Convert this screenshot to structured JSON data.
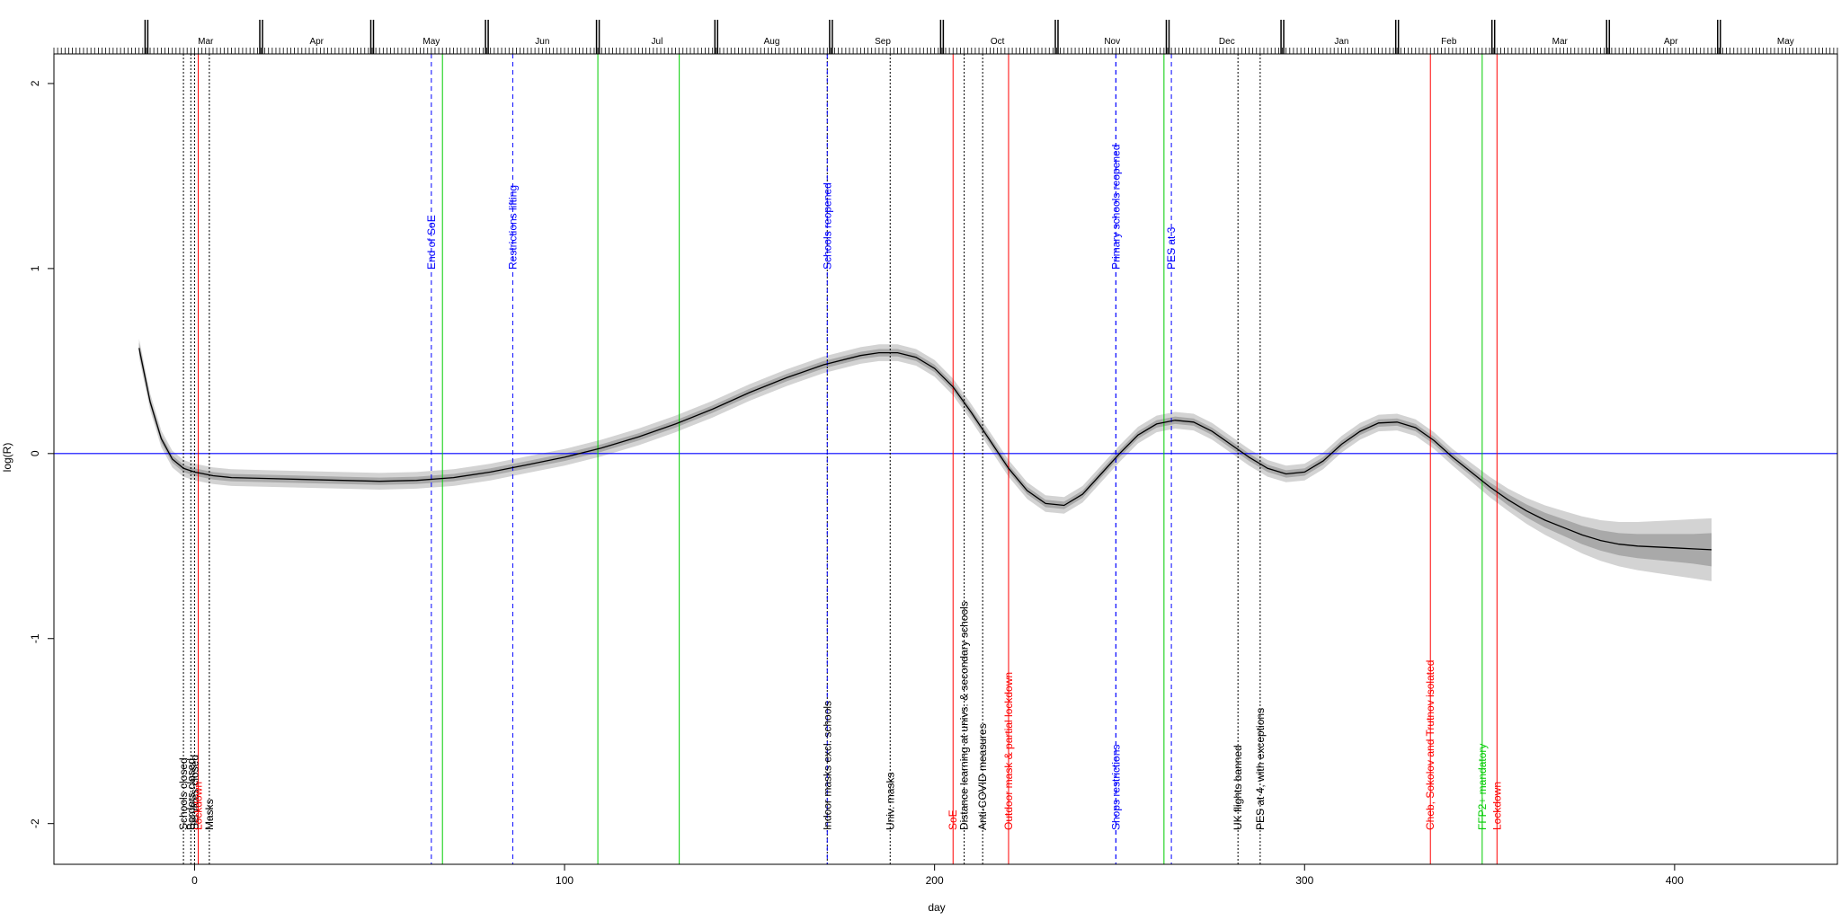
{
  "chart_data": {
    "type": "line",
    "title": "",
    "xlabel": "day",
    "ylabel": "log(R)",
    "xlim": [
      -38,
      444
    ],
    "ylim": [
      -2.22,
      2.16
    ],
    "x_ticks": [
      0,
      100,
      200,
      300,
      400
    ],
    "y_ticks": [
      -2,
      -1,
      0,
      1,
      2
    ],
    "reference_line_y": 0,
    "colors": {
      "curve": "#000000",
      "band_outer": "#d3d3d3",
      "band_inner": "#a9a9a9",
      "reference": "#0000ff",
      "event_black": "#000000",
      "event_red": "#ff0000",
      "event_blue": "#0000ff",
      "event_green": "#00cc00"
    },
    "top_axis": {
      "months": [
        {
          "label": "Mar",
          "x": 3
        },
        {
          "label": "Apr",
          "x": 33
        },
        {
          "label": "May",
          "x": 64
        },
        {
          "label": "Jun",
          "x": 94
        },
        {
          "label": "Jul",
          "x": 125
        },
        {
          "label": "Aug",
          "x": 156
        },
        {
          "label": "Sep",
          "x": 186
        },
        {
          "label": "Oct",
          "x": 217
        },
        {
          "label": "Nov",
          "x": 248
        },
        {
          "label": "Dec",
          "x": 279
        },
        {
          "label": "Jan",
          "x": 310
        },
        {
          "label": "Feb",
          "x": 339
        },
        {
          "label": "Mar",
          "x": 369
        },
        {
          "label": "Apr",
          "x": 399
        },
        {
          "label": "May",
          "x": 430
        }
      ],
      "month_boundaries": [
        -13,
        18,
        48,
        79,
        109,
        141,
        172,
        202,
        233,
        263,
        294,
        325,
        351,
        382,
        412
      ],
      "tick_start": -38,
      "tick_end": 444
    },
    "series": [
      {
        "x": [
          -15,
          -12,
          -9,
          -6,
          -3,
          0,
          5,
          10,
          20,
          30,
          40,
          50,
          60,
          70,
          80,
          90,
          100,
          110,
          120,
          130,
          140,
          150,
          160,
          170,
          180,
          185,
          190,
          195,
          200,
          205,
          210,
          215,
          220,
          225,
          230,
          235,
          240,
          245,
          250,
          255,
          260,
          265,
          270,
          275,
          280,
          285,
          290,
          295,
          300,
          305,
          310,
          315,
          320,
          325,
          330,
          335,
          340,
          345,
          350,
          355,
          360,
          365,
          370,
          375,
          380,
          385,
          390,
          395,
          400,
          405,
          410
        ],
        "y": [
          0.57,
          0.28,
          0.08,
          -0.03,
          -0.08,
          -0.1,
          -0.12,
          -0.13,
          -0.135,
          -0.14,
          -0.145,
          -0.15,
          -0.145,
          -0.13,
          -0.1,
          -0.06,
          -0.02,
          0.03,
          0.09,
          0.16,
          0.24,
          0.33,
          0.41,
          0.48,
          0.53,
          0.545,
          0.545,
          0.52,
          0.46,
          0.36,
          0.22,
          0.07,
          -0.08,
          -0.2,
          -0.27,
          -0.28,
          -0.22,
          -0.11,
          0.0,
          0.1,
          0.16,
          0.18,
          0.17,
          0.12,
          0.05,
          -0.02,
          -0.08,
          -0.11,
          -0.1,
          -0.04,
          0.05,
          0.12,
          0.165,
          0.17,
          0.14,
          0.07,
          -0.02,
          -0.1,
          -0.18,
          -0.25,
          -0.31,
          -0.36,
          -0.4,
          -0.44,
          -0.47,
          -0.49,
          -0.5,
          -0.505,
          -0.51,
          -0.515,
          -0.52
        ],
        "band_inner": [
          0.03,
          0.02,
          0.02,
          0.02,
          0.02,
          0.02,
          0.02,
          0.02,
          0.02,
          0.02,
          0.02,
          0.02,
          0.02,
          0.02,
          0.02,
          0.02,
          0.02,
          0.02,
          0.02,
          0.02,
          0.02,
          0.02,
          0.02,
          0.02,
          0.02,
          0.02,
          0.02,
          0.02,
          0.02,
          0.02,
          0.02,
          0.02,
          0.02,
          0.02,
          0.02,
          0.02,
          0.02,
          0.02,
          0.02,
          0.02,
          0.02,
          0.02,
          0.02,
          0.02,
          0.02,
          0.02,
          0.02,
          0.02,
          0.02,
          0.02,
          0.02,
          0.02,
          0.02,
          0.02,
          0.02,
          0.02,
          0.02,
          0.02,
          0.025,
          0.03,
          0.035,
          0.04,
          0.045,
          0.05,
          0.055,
          0.06,
          0.065,
          0.07,
          0.075,
          0.08,
          0.09
        ],
        "band_outer": [
          0.05,
          0.045,
          0.045,
          0.045,
          0.045,
          0.045,
          0.045,
          0.045,
          0.045,
          0.045,
          0.045,
          0.045,
          0.045,
          0.045,
          0.045,
          0.045,
          0.045,
          0.045,
          0.045,
          0.045,
          0.045,
          0.045,
          0.045,
          0.045,
          0.045,
          0.045,
          0.045,
          0.045,
          0.045,
          0.045,
          0.045,
          0.045,
          0.045,
          0.045,
          0.045,
          0.045,
          0.045,
          0.045,
          0.045,
          0.045,
          0.045,
          0.045,
          0.045,
          0.045,
          0.045,
          0.045,
          0.045,
          0.045,
          0.045,
          0.045,
          0.045,
          0.045,
          0.045,
          0.045,
          0.045,
          0.045,
          0.045,
          0.05,
          0.055,
          0.06,
          0.07,
          0.08,
          0.09,
          0.1,
          0.11,
          0.12,
          0.13,
          0.14,
          0.15,
          0.16,
          0.17
        ]
      }
    ],
    "events_bottom": [
      {
        "x": -3,
        "label": "Schools closed",
        "color": "black",
        "dash": "dotted"
      },
      {
        "x": -1,
        "label": "Borders closed",
        "color": "black",
        "dash": "dotted"
      },
      {
        "x": 0,
        "label": "Services closed",
        "color": "black",
        "dash": "dotted"
      },
      {
        "x": 1,
        "label": "Lockdown",
        "color": "red",
        "dash": "solid"
      },
      {
        "x": 4,
        "label": "Masks",
        "color": "black",
        "dash": "dotted"
      },
      {
        "x": 171,
        "label": "Indoor masks excl. schools",
        "color": "black",
        "dash": "dotted"
      },
      {
        "x": 188,
        "label": "Univ. masks",
        "color": "black",
        "dash": "dotted"
      },
      {
        "x": 205,
        "label": "SoE",
        "color": "red",
        "dash": "solid"
      },
      {
        "x": 208,
        "label": "Distance learning at univs. & secondary schools",
        "color": "black",
        "dash": "dotted"
      },
      {
        "x": 213,
        "label": "Anti-COVID measures",
        "color": "black",
        "dash": "dotted"
      },
      {
        "x": 220,
        "label": "Outdoor mask & partial lockdown",
        "color": "red",
        "dash": "solid"
      },
      {
        "x": 249,
        "label": "Shops restrictions",
        "color": "blue",
        "dash": "dashed"
      },
      {
        "x": 282,
        "label": "UK flights banned",
        "color": "black",
        "dash": "dotted"
      },
      {
        "x": 288,
        "label": "PES at 4, with exceptions",
        "color": "black",
        "dash": "dotted"
      },
      {
        "x": 334,
        "label": "Cheb, Sokolov and Trutnov isolated",
        "color": "red",
        "dash": "solid"
      },
      {
        "x": 348,
        "label": "FFP2+ mandatory",
        "color": "green",
        "dash": "solid"
      },
      {
        "x": 352,
        "label": "Lockdown",
        "color": "red",
        "dash": "solid"
      }
    ],
    "events_top": [
      {
        "x": 64,
        "label": "End of SoE",
        "color": "blue",
        "dash": "dashed"
      },
      {
        "x": 86,
        "label": "Restrictions lifting",
        "color": "blue",
        "dash": "dashed"
      },
      {
        "x": 171,
        "label": "Schools reopened",
        "color": "blue",
        "dash": "dashed"
      },
      {
        "x": 249,
        "label": "Primary schools reopened",
        "color": "blue",
        "dash": "dashed"
      },
      {
        "x": 264,
        "label": "PES at 3",
        "color": "blue",
        "dash": "dashed"
      }
    ],
    "events_plain": [
      {
        "x": 67,
        "color": "green",
        "dash": "solid"
      },
      {
        "x": 109,
        "color": "green",
        "dash": "solid"
      },
      {
        "x": 131,
        "color": "green",
        "dash": "solid"
      },
      {
        "x": 262,
        "color": "green",
        "dash": "solid"
      }
    ]
  }
}
